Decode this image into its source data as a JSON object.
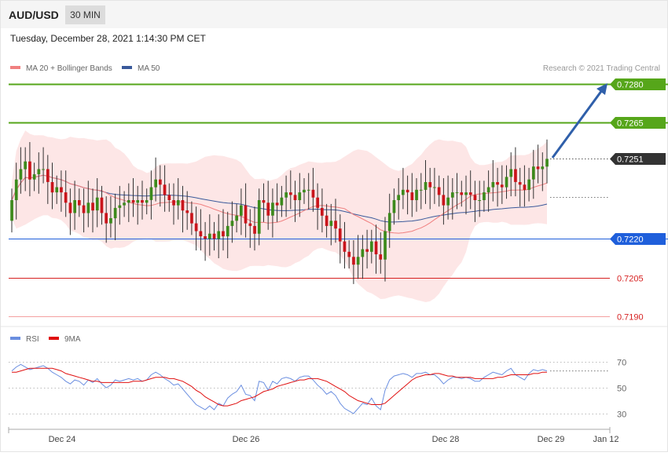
{
  "header": {
    "symbol": "AUD/USD",
    "timeframe": "30 MIN",
    "datetime": "Tuesday, December 28, 2021 1:14:30 PM CET",
    "credit": "Research © 2021 Trading Central"
  },
  "legend": {
    "ma20": "MA 20 + Bollinger Bands",
    "ma50": "MA 50",
    "rsi": "RSI",
    "ma9": "9MA"
  },
  "colors": {
    "green_level": "#56a61a",
    "blue_level": "#1f5fdb",
    "red_level": "#d62020",
    "price_tag": "#333333",
    "ma20": "#f08080",
    "ma50": "#3a5a9b",
    "bollinger_fill": "#fde2e2",
    "candle_up": "#3c8a1c",
    "candle_down": "#c9141b",
    "rsi": "#6a8ee0",
    "ma9": "#e01010",
    "arrow": "#2f5faa"
  },
  "chart_data": [
    {
      "type": "candlestick",
      "title": "AUD/USD",
      "timeframe": "30 MIN",
      "x_ticks": [
        "Dec 24",
        "Dec 26",
        "Dec 28",
        "Dec 29",
        "Jan 12"
      ],
      "ylim": [
        0.7187,
        0.7284
      ],
      "levels": [
        {
          "value": 0.728,
          "label": "0.7280",
          "kind": "resistance"
        },
        {
          "value": 0.7265,
          "label": "0.7265",
          "kind": "resistance"
        },
        {
          "value": 0.7251,
          "label": "0.7251",
          "kind": "last-price"
        },
        {
          "value": 0.722,
          "label": "0.7220",
          "kind": "pivot"
        },
        {
          "value": 0.7205,
          "label": "0.7205",
          "kind": "support"
        },
        {
          "value": 0.719,
          "label": "0.7190",
          "kind": "support"
        }
      ],
      "closes": [
        0.7235,
        0.7243,
        0.7247,
        0.725,
        0.7243,
        0.7245,
        0.7247,
        0.7247,
        0.7242,
        0.7238,
        0.724,
        0.7238,
        0.7234,
        0.723,
        0.7235,
        0.7233,
        0.723,
        0.7234,
        0.7231,
        0.7236,
        0.723,
        0.7226,
        0.7228,
        0.7232,
        0.7233,
        0.7234,
        0.7235,
        0.7234,
        0.7235,
        0.7234,
        0.7235,
        0.724,
        0.7243,
        0.7241,
        0.7237,
        0.7235,
        0.7233,
        0.7235,
        0.7231,
        0.723,
        0.7226,
        0.7223,
        0.7221,
        0.722,
        0.7222,
        0.722,
        0.7223,
        0.7221,
        0.7225,
        0.7227,
        0.7229,
        0.7233,
        0.7226,
        0.7225,
        0.7222,
        0.7235,
        0.7234,
        0.7229,
        0.7234,
        0.7233,
        0.7236,
        0.7238,
        0.7237,
        0.7235,
        0.7238,
        0.7239,
        0.7239,
        0.7236,
        0.7232,
        0.7229,
        0.7225,
        0.7227,
        0.7224,
        0.7219,
        0.7215,
        0.7213,
        0.721,
        0.7213,
        0.7216,
        0.7215,
        0.7219,
        0.7214,
        0.7212,
        0.7223,
        0.723,
        0.7235,
        0.7237,
        0.7239,
        0.7238,
        0.7235,
        0.7239,
        0.7239,
        0.7242,
        0.724,
        0.724,
        0.7237,
        0.7233,
        0.7236,
        0.7238,
        0.7238,
        0.7237,
        0.7238,
        0.7237,
        0.7235,
        0.7235,
        0.7238,
        0.724,
        0.7242,
        0.7241,
        0.724,
        0.7244,
        0.7247,
        0.7242,
        0.7241,
        0.7239,
        0.7243,
        0.7248,
        0.7247,
        0.7248,
        0.7251
      ],
      "rsi": {
        "name": "RSI",
        "ylim": [
          20,
          80
        ],
        "ticks": [
          30,
          50,
          70
        ],
        "values": [
          63,
          66,
          68,
          66,
          64,
          65,
          66,
          67,
          65,
          62,
          60,
          58,
          55,
          53,
          56,
          55,
          52,
          56,
          54,
          57,
          53,
          50,
          52,
          56,
          55,
          56,
          57,
          56,
          57,
          55,
          56,
          60,
          62,
          60,
          57,
          55,
          52,
          53,
          49,
          45,
          41,
          37,
          35,
          33,
          36,
          33,
          38,
          36,
          42,
          45,
          47,
          52,
          45,
          44,
          40,
          55,
          54,
          48,
          55,
          53,
          57,
          58,
          57,
          55,
          58,
          59,
          59,
          56,
          52,
          49,
          45,
          47,
          44,
          38,
          34,
          32,
          30,
          34,
          38,
          37,
          42,
          36,
          33,
          48,
          56,
          59,
          60,
          61,
          60,
          58,
          61,
          61,
          62,
          60,
          60,
          57,
          53,
          56,
          58,
          58,
          57,
          58,
          57,
          55,
          55,
          58,
          60,
          62,
          61,
          60,
          63,
          65,
          60,
          58,
          56,
          61,
          64,
          63,
          64,
          63
        ]
      },
      "ma9": {
        "name": "9MA",
        "values": [
          62,
          62,
          63,
          64,
          65,
          65,
          65,
          65,
          65,
          65,
          64,
          63,
          61,
          60,
          59,
          58,
          57,
          56,
          55,
          55,
          54,
          54,
          54,
          54,
          54,
          54,
          54,
          55,
          55,
          55,
          56,
          57,
          58,
          58,
          58,
          57,
          57,
          56,
          55,
          53,
          51,
          48,
          46,
          43,
          41,
          39,
          37,
          36,
          36,
          37,
          38,
          40,
          41,
          42,
          43,
          45,
          47,
          48,
          49,
          51,
          52,
          53,
          54,
          55,
          56,
          56,
          57,
          57,
          57,
          56,
          55,
          53,
          51,
          49,
          47,
          44,
          42,
          40,
          39,
          38,
          37,
          37,
          37,
          38,
          41,
          44,
          47,
          50,
          53,
          56,
          58,
          59,
          60,
          60,
          61,
          61,
          60,
          59,
          59,
          58,
          58,
          58,
          58,
          57,
          57,
          57,
          57,
          57,
          58,
          58,
          59,
          60,
          60,
          60,
          60,
          60,
          61,
          61,
          62,
          62
        ]
      }
    }
  ]
}
